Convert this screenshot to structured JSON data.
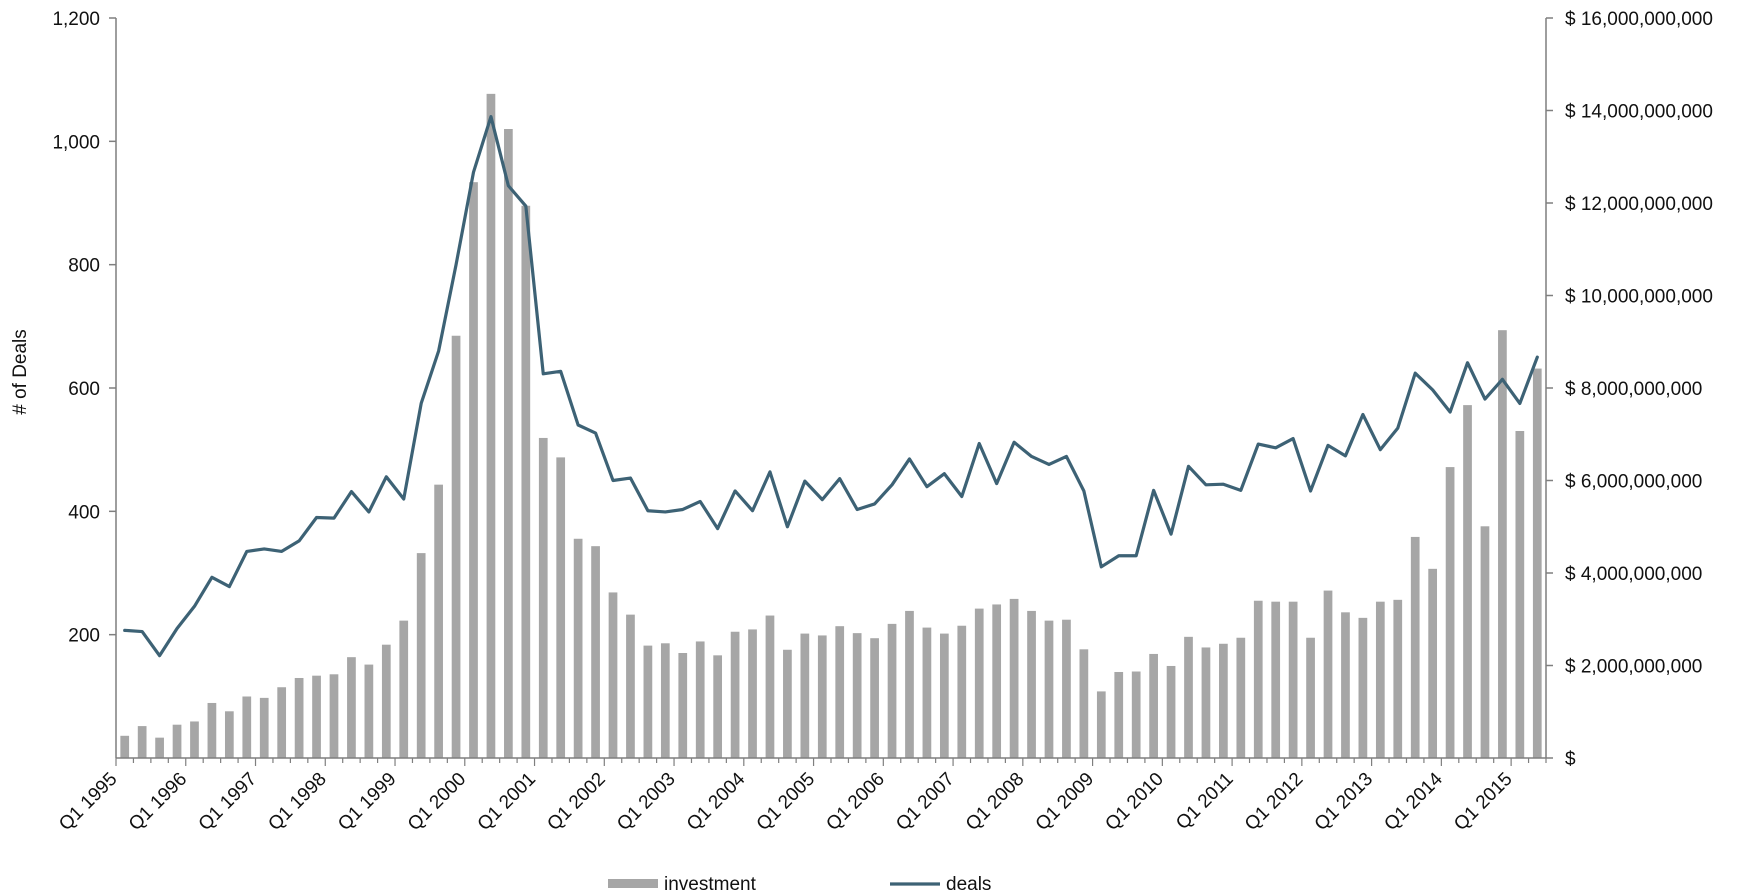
{
  "chart_data": {
    "type": "bar+line",
    "title": "",
    "xlabel": "",
    "ylabel": "# of Deals",
    "y2label": "",
    "ylim": [
      0,
      1200
    ],
    "y2lim": [
      0,
      16000000000
    ],
    "y_ticks": [
      "200",
      "400",
      "600",
      "800",
      "1,000",
      "1,200"
    ],
    "y2_ticks": [
      "$",
      "$ 2,000,000,000",
      "$ 4,000,000,000",
      "$ 6,000,000,000",
      "$ 8,000,000,000",
      "$ 10,000,000,000",
      "$ 12,000,000,000",
      "$ 14,000,000,000",
      "$ 16,000,000,000"
    ],
    "x_ticks": [
      "Q1 1995",
      "Q1 1996",
      "Q1 1997",
      "Q1 1998",
      "Q1 1999",
      "Q1 2000",
      "Q1 2001",
      "Q1 2002",
      "Q1 2003",
      "Q1 2004",
      "Q1 2005",
      "Q1 2006",
      "Q1 2007",
      "Q1 2008",
      "Q1 2009",
      "Q1 2010",
      "Q1 2011",
      "Q1 2012",
      "Q1 2013",
      "Q1 2014",
      "Q1 2015"
    ],
    "periods_start": "Q1 1995",
    "grid": false,
    "legend_position": "bottom-center",
    "series": [
      {
        "name": "investment",
        "type": "bar",
        "axis": "right",
        "color": "#a6a6a6",
        "values": [
          480000000,
          690000000,
          440000000,
          720000000,
          790000000,
          1190000000,
          1010000000,
          1330000000,
          1300000000,
          1530000000,
          1730000000,
          1780000000,
          1810000000,
          2180000000,
          2020000000,
          2450000000,
          2970000000,
          4430000000,
          5910000000,
          9130000000,
          12450000000,
          14360000000,
          13600000000,
          11940000000,
          6920000000,
          6500000000,
          4740000000,
          4580000000,
          3580000000,
          3100000000,
          2430000000,
          2480000000,
          2270000000,
          2520000000,
          2220000000,
          2730000000,
          2780000000,
          3080000000,
          2340000000,
          2690000000,
          2650000000,
          2850000000,
          2700000000,
          2590000000,
          2900000000,
          3180000000,
          2820000000,
          2690000000,
          2860000000,
          3230000000,
          3320000000,
          3440000000,
          3180000000,
          2970000000,
          2990000000,
          2350000000,
          1440000000,
          1860000000,
          1870000000,
          2250000000,
          1990000000,
          2620000000,
          2390000000,
          2470000000,
          2600000000,
          3400000000,
          3380000000,
          3380000000,
          2600000000,
          3620000000,
          3150000000,
          3030000000,
          3380000000,
          3420000000,
          4780000000,
          4090000000,
          6290000000,
          7630000000,
          5010000000,
          9250000000,
          7070000000,
          8420000000
        ]
      },
      {
        "name": "deals",
        "type": "line",
        "axis": "left",
        "color": "#3d6275",
        "values": [
          207,
          205,
          166,
          210,
          246,
          293,
          278,
          335,
          339,
          335,
          352,
          390,
          389,
          432,
          399,
          456,
          420,
          575,
          660,
          800,
          950,
          1040,
          928,
          895,
          623,
          627,
          540,
          527,
          450,
          454,
          401,
          399,
          403,
          416,
          372,
          433,
          401,
          464,
          375,
          449,
          419,
          453,
          403,
          412,
          443,
          485,
          440,
          461,
          424,
          510,
          445,
          512,
          489,
          476,
          489,
          433,
          310,
          328,
          328,
          434,
          363,
          473,
          443,
          444,
          434,
          509,
          503,
          518,
          433,
          507,
          490,
          557,
          500,
          535,
          624,
          597,
          561,
          641,
          582,
          614,
          575,
          650
        ]
      }
    ]
  }
}
